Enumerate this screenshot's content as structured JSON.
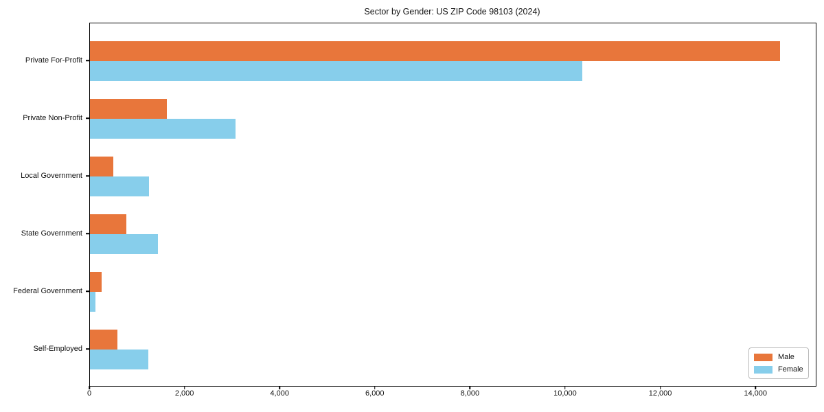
{
  "title": "Sector by Gender: US ZIP Code 98103 (2024)",
  "chart_data": {
    "type": "bar",
    "orientation": "horizontal",
    "title": "Sector by Gender: US ZIP Code 98103 (2024)",
    "categories": [
      "Private For-Profit",
      "Private Non-Profit",
      "Local Government",
      "State Government",
      "Federal Government",
      "Self-Employed"
    ],
    "series": [
      {
        "name": "Male",
        "color": "#e8763b",
        "values": [
          14500,
          1620,
          490,
          770,
          240,
          580
        ]
      },
      {
        "name": "Female",
        "color": "#87ceeb",
        "values": [
          10350,
          3060,
          1240,
          1430,
          120,
          1230
        ]
      }
    ],
    "xlabel": "",
    "ylabel": "",
    "xlim": [
      0,
      15253
    ],
    "xticks": [
      0,
      2000,
      4000,
      6000,
      8000,
      10000,
      12000,
      14000
    ],
    "xtick_labels": [
      "0",
      "2,000",
      "4,000",
      "6,000",
      "8,000",
      "10,000",
      "12,000",
      "14,000"
    ],
    "grid": false,
    "legend_position": "lower right"
  }
}
